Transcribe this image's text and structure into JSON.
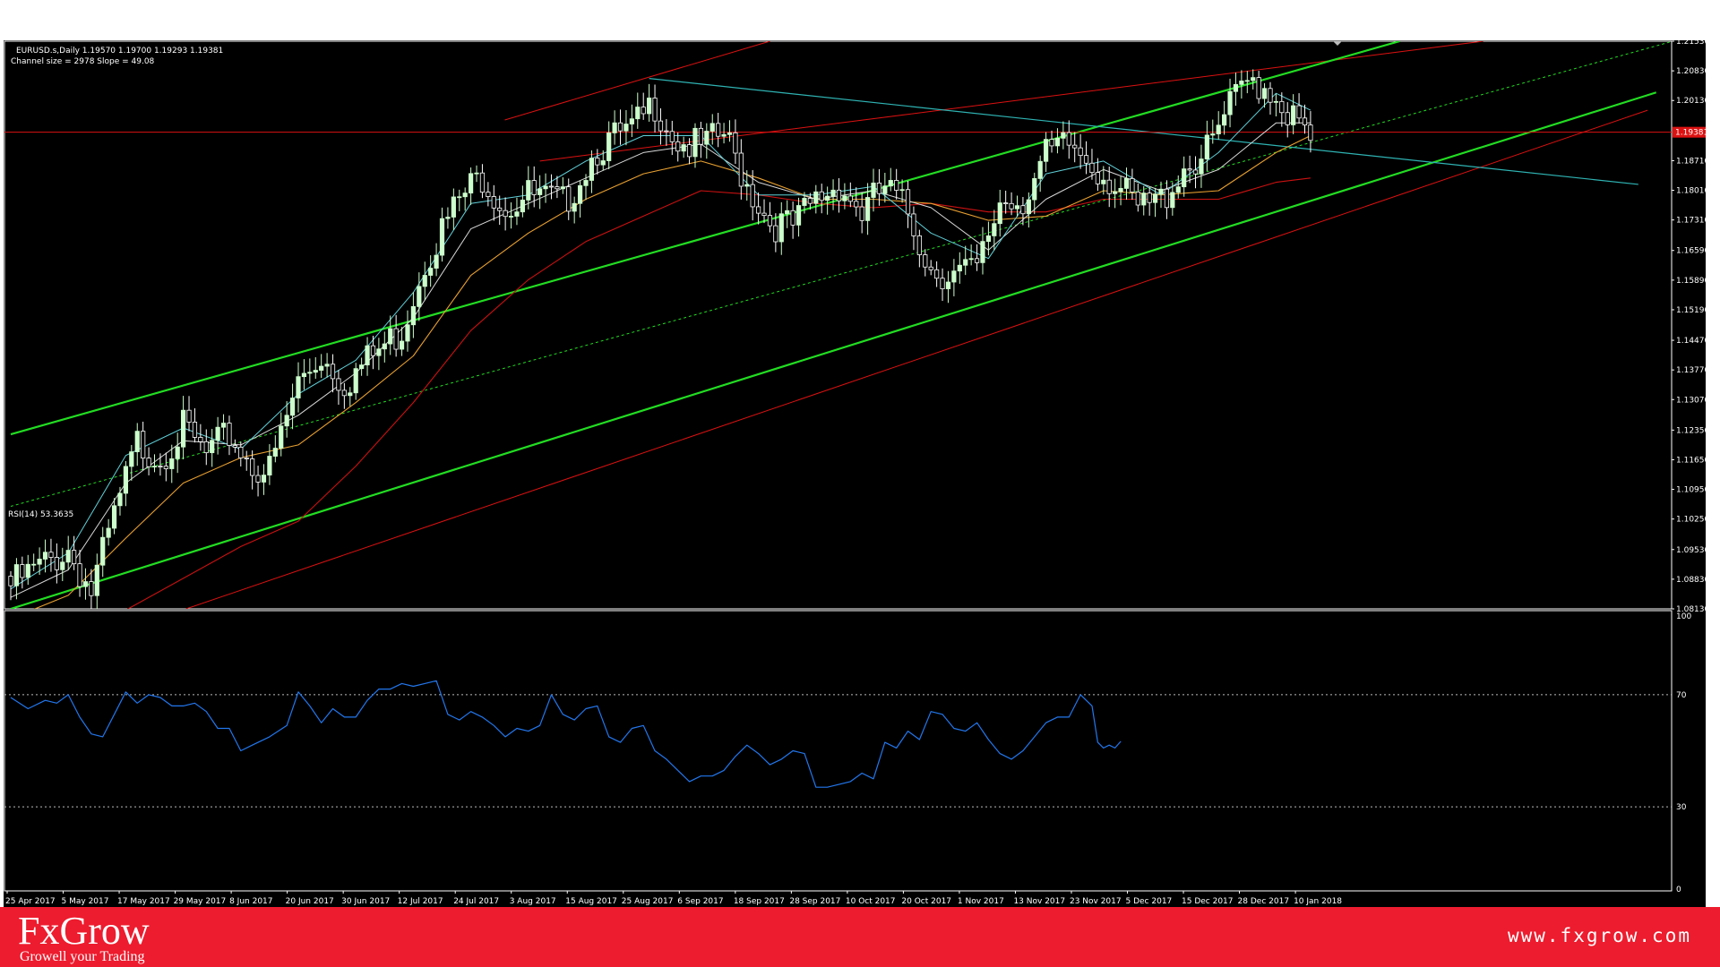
{
  "header": {
    "symbol_info": "EURUSD.s,Daily  1.19570 1.19700 1.19293 1.19381",
    "channel_info": "Channel size = 2978 Slope = 49.08"
  },
  "colors": {
    "background": "#000000",
    "bull_candle": "#ccffcc",
    "bear_candle": "#ffffff",
    "channel_main": "#22dd22",
    "channel_outer": "#dd1111",
    "trendline": "#2fb3b3",
    "price_line": "#dd1111",
    "rsi_line": "#2277ee",
    "footer": "#ed1c2e"
  },
  "chart_data": [
    {
      "type": "candlestick",
      "symbol": "EURUSD.s",
      "timeframe": "Daily",
      "ylim": [
        1.0813,
        1.2153
      ],
      "y_ticks": [
        "1.21530",
        "1.20830",
        "1.20130",
        "1.19381",
        "1.18710",
        "1.18010",
        "1.17310",
        "1.16590",
        "1.15890",
        "1.15190",
        "1.14470",
        "1.13770",
        "1.13070",
        "1.12350",
        "1.11650",
        "1.10950",
        "1.10250",
        "1.09530",
        "1.08830",
        "1.08130"
      ],
      "current_price": "1.19381",
      "x_ticks": [
        "25 Apr 2017",
        "5 May 2017",
        "17 May 2017",
        "29 May 2017",
        "8 Jun 2017",
        "20 Jun 2017",
        "30 Jun 2017",
        "12 Jul 2017",
        "24 Jul 2017",
        "3 Aug 2017",
        "15 Aug 2017",
        "25 Aug 2017",
        "6 Sep 2017",
        "18 Sep 2017",
        "28 Sep 2017",
        "10 Oct 2017",
        "20 Oct 2017",
        "1 Nov 2017",
        "13 Nov 2017",
        "23 Nov 2017",
        "5 Dec 2017",
        "15 Dec 2017",
        "28 Dec 2017",
        "10 Jan 2018"
      ],
      "close_path": [
        [
          0,
          1.089
        ],
        [
          10,
          1.0975
        ],
        [
          14,
          1.0875
        ],
        [
          22,
          1.1225
        ],
        [
          26,
          1.1195
        ],
        [
          30,
          1.126
        ],
        [
          34,
          1.1195
        ],
        [
          38,
          1.1245
        ],
        [
          42,
          1.1175
        ],
        [
          45,
          1.116
        ],
        [
          50,
          1.137
        ],
        [
          54,
          1.1435
        ],
        [
          58,
          1.137
        ],
        [
          64,
          1.1445
        ],
        [
          68,
          1.1495
        ],
        [
          72,
          1.166
        ],
        [
          78,
          1.18
        ],
        [
          82,
          1.186
        ],
        [
          86,
          1.1785
        ],
        [
          90,
          1.181
        ],
        [
          96,
          1.179
        ],
        [
          102,
          1.1925
        ],
        [
          108,
          1.196
        ],
        [
          112,
          1.203
        ],
        [
          116,
          1.194
        ],
        [
          120,
          1.192
        ],
        [
          124,
          1.1955
        ],
        [
          128,
          1.184
        ],
        [
          132,
          1.175
        ],
        [
          136,
          1.1735
        ],
        [
          140,
          1.18
        ],
        [
          144,
          1.184
        ],
        [
          148,
          1.177
        ],
        [
          152,
          1.183
        ],
        [
          156,
          1.177
        ],
        [
          160,
          1.164
        ],
        [
          164,
          1.1625
        ],
        [
          168,
          1.163
        ],
        [
          172,
          1.18
        ],
        [
          176,
          1.1805
        ],
        [
          180,
          1.19
        ],
        [
          184,
          1.193
        ],
        [
          188,
          1.189
        ],
        [
          192,
          1.184
        ],
        [
          196,
          1.1775
        ],
        [
          200,
          1.18
        ],
        [
          204,
          1.188
        ],
        [
          208,
          1.191
        ],
        [
          212,
          1.202
        ],
        [
          216,
          1.209
        ],
        [
          220,
          1.205
        ],
        [
          223,
          1.199
        ],
        [
          226,
          1.1938
        ]
      ],
      "channel": {
        "upper": [
          [
            0,
            1.1225
          ],
          [
            241.5,
            1.2153
          ]
        ],
        "lower": [
          [
            0,
            1.0813
          ],
          [
            286.1,
            1.2032
          ]
        ],
        "mid": [
          [
            0,
            1.1055
          ],
          [
            289,
            1.2153
          ]
        ],
        "outer_upper": [
          [
            85.9,
            1.1967
          ],
          [
            132,
            1.2153
          ]
        ],
        "outer_lower": [
          [
            30.5,
            1.0813
          ],
          [
            284.6,
            1.199
          ]
        ],
        "outer_far": [
          [
            92,
            1.187
          ],
          [
            256,
            1.2153
          ]
        ]
      },
      "trendline": [
        [
          111,
          1.2065
        ],
        [
          283,
          1.1815
        ]
      ],
      "moving_averages": {
        "fast": [
          [
            0,
            1.086
          ],
          [
            10,
            1.0945
          ],
          [
            20,
            1.1175
          ],
          [
            30,
            1.124
          ],
          [
            40,
            1.119
          ],
          [
            50,
            1.132
          ],
          [
            60,
            1.14
          ],
          [
            70,
            1.156
          ],
          [
            80,
            1.177
          ],
          [
            90,
            1.179
          ],
          [
            100,
            1.187
          ],
          [
            110,
            1.193
          ],
          [
            120,
            1.193
          ],
          [
            130,
            1.179
          ],
          [
            140,
            1.179
          ],
          [
            150,
            1.181
          ],
          [
            160,
            1.17
          ],
          [
            170,
            1.164
          ],
          [
            180,
            1.184
          ],
          [
            190,
            1.187
          ],
          [
            200,
            1.179
          ],
          [
            210,
            1.189
          ],
          [
            220,
            1.203
          ],
          [
            226,
            1.199
          ]
        ],
        "medium": [
          [
            0,
            1.084
          ],
          [
            10,
            1.0905
          ],
          [
            20,
            1.111
          ],
          [
            30,
            1.121
          ],
          [
            40,
            1.12
          ],
          [
            50,
            1.127
          ],
          [
            60,
            1.137
          ],
          [
            70,
            1.15
          ],
          [
            80,
            1.171
          ],
          [
            90,
            1.177
          ],
          [
            100,
            1.183
          ],
          [
            110,
            1.189
          ],
          [
            120,
            1.191
          ],
          [
            130,
            1.182
          ],
          [
            140,
            1.178
          ],
          [
            150,
            1.18
          ],
          [
            160,
            1.176
          ],
          [
            170,
            1.166
          ],
          [
            180,
            1.178
          ],
          [
            190,
            1.185
          ],
          [
            200,
            1.18
          ],
          [
            210,
            1.185
          ],
          [
            220,
            1.196
          ],
          [
            226,
            1.196
          ]
        ],
        "slow": [
          [
            0,
            1.079
          ],
          [
            10,
            1.0845
          ],
          [
            20,
            1.098
          ],
          [
            30,
            1.111
          ],
          [
            40,
            1.117
          ],
          [
            50,
            1.12
          ],
          [
            60,
            1.13
          ],
          [
            70,
            1.141
          ],
          [
            80,
            1.16
          ],
          [
            90,
            1.17
          ],
          [
            100,
            1.178
          ],
          [
            110,
            1.184
          ],
          [
            120,
            1.187
          ],
          [
            130,
            1.183
          ],
          [
            140,
            1.178
          ],
          [
            150,
            1.178
          ],
          [
            160,
            1.177
          ],
          [
            170,
            1.173
          ],
          [
            180,
            1.174
          ],
          [
            190,
            1.18
          ],
          [
            200,
            1.179
          ],
          [
            210,
            1.18
          ],
          [
            220,
            1.189
          ],
          [
            226,
            1.193
          ]
        ],
        "long": [
          [
            0,
            1.072
          ],
          [
            20,
            1.081
          ],
          [
            40,
            1.096
          ],
          [
            50,
            1.102
          ],
          [
            60,
            1.115
          ],
          [
            70,
            1.13
          ],
          [
            80,
            1.147
          ],
          [
            90,
            1.159
          ],
          [
            100,
            1.168
          ],
          [
            110,
            1.174
          ],
          [
            120,
            1.18
          ],
          [
            130,
            1.179
          ],
          [
            140,
            1.177
          ],
          [
            150,
            1.176
          ],
          [
            160,
            1.177
          ],
          [
            170,
            1.175
          ],
          [
            180,
            1.175
          ],
          [
            190,
            1.178
          ],
          [
            200,
            1.178
          ],
          [
            210,
            1.178
          ],
          [
            220,
            1.182
          ],
          [
            226,
            1.183
          ]
        ]
      }
    },
    {
      "type": "line",
      "title": "RSI(14) 53.3635",
      "ylim": [
        0,
        100
      ],
      "y_ticks": [
        "100",
        "70",
        "30",
        "0"
      ],
      "levels": [
        70,
        30
      ],
      "values": [
        [
          0,
          69
        ],
        [
          3,
          65
        ],
        [
          6,
          68
        ],
        [
          8,
          67
        ],
        [
          10,
          70
        ],
        [
          12,
          62
        ],
        [
          14,
          56
        ],
        [
          16,
          55
        ],
        [
          18,
          63
        ],
        [
          20,
          71
        ],
        [
          22,
          67
        ],
        [
          24,
          70
        ],
        [
          26,
          69
        ],
        [
          28,
          66
        ],
        [
          30,
          66
        ],
        [
          32,
          67
        ],
        [
          34,
          64
        ],
        [
          36,
          58
        ],
        [
          38,
          58
        ],
        [
          40,
          50
        ],
        [
          42,
          52
        ],
        [
          45,
          55
        ],
        [
          48,
          59
        ],
        [
          50,
          71
        ],
        [
          52,
          66
        ],
        [
          54,
          60
        ],
        [
          56,
          65
        ],
        [
          58,
          62
        ],
        [
          60,
          62
        ],
        [
          62,
          68
        ],
        [
          64,
          72
        ],
        [
          66,
          72
        ],
        [
          68,
          74
        ],
        [
          70,
          73
        ],
        [
          72,
          74
        ],
        [
          74,
          75
        ],
        [
          76,
          63
        ],
        [
          78,
          61
        ],
        [
          80,
          64
        ],
        [
          82,
          62
        ],
        [
          84,
          59
        ],
        [
          86,
          55
        ],
        [
          88,
          58
        ],
        [
          90,
          57
        ],
        [
          92,
          59
        ],
        [
          94,
          70
        ],
        [
          96,
          63
        ],
        [
          98,
          61
        ],
        [
          100,
          65
        ],
        [
          102,
          66
        ],
        [
          104,
          55
        ],
        [
          106,
          53
        ],
        [
          108,
          58
        ],
        [
          110,
          59
        ],
        [
          112,
          50
        ],
        [
          114,
          47
        ],
        [
          116,
          43
        ],
        [
          118,
          39
        ],
        [
          120,
          41
        ],
        [
          122,
          41
        ],
        [
          124,
          43
        ],
        [
          126,
          48
        ],
        [
          128,
          52
        ],
        [
          130,
          49
        ],
        [
          132,
          45
        ],
        [
          134,
          47
        ],
        [
          136,
          50
        ],
        [
          138,
          49
        ],
        [
          140,
          37
        ],
        [
          142,
          37
        ],
        [
          144,
          38
        ],
        [
          146,
          39
        ],
        [
          148,
          42
        ],
        [
          150,
          40
        ],
        [
          152,
          53
        ],
        [
          154,
          51
        ],
        [
          156,
          57
        ],
        [
          158,
          54
        ],
        [
          160,
          64
        ],
        [
          162,
          63
        ],
        [
          164,
          58
        ],
        [
          166,
          57
        ],
        [
          168,
          60
        ],
        [
          170,
          54
        ],
        [
          172,
          49
        ],
        [
          174,
          47
        ],
        [
          176,
          50
        ],
        [
          178,
          55
        ],
        [
          180,
          60
        ],
        [
          182,
          62
        ],
        [
          184,
          62
        ],
        [
          186,
          70
        ],
        [
          188,
          66
        ],
        [
          189,
          53
        ],
        [
          190,
          51
        ],
        [
          191,
          52
        ],
        [
          192,
          51
        ],
        [
          193,
          53.36
        ]
      ]
    }
  ],
  "footer": {
    "logo": "FxGrow",
    "tagline": "Growell your Trading",
    "url": "www.fxgrow.com"
  }
}
